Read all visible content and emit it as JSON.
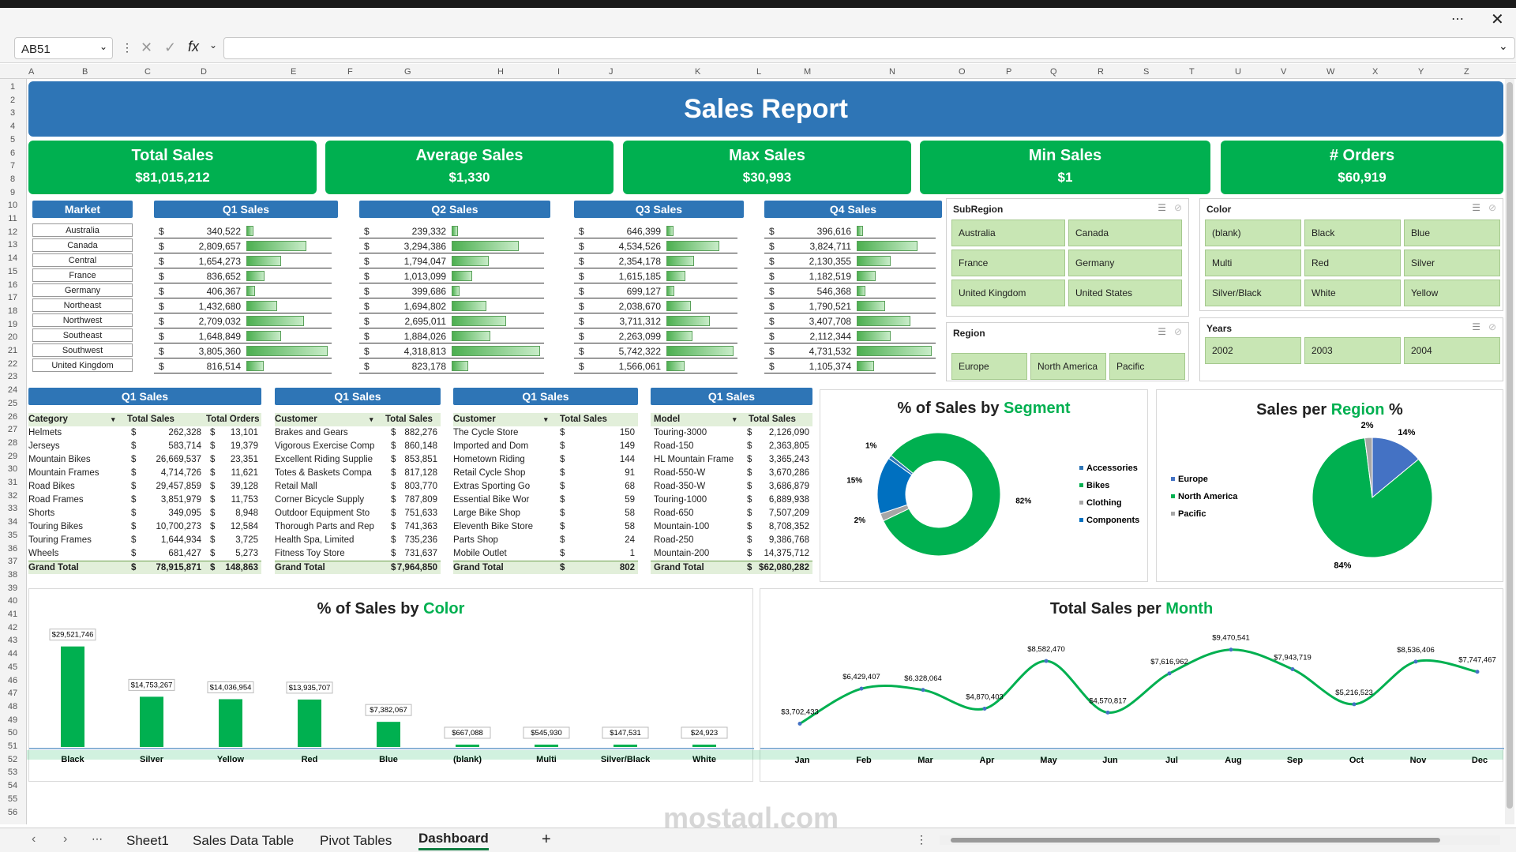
{
  "namebox": "AB51",
  "formula_icons": [
    "cancel-icon",
    "enter-icon",
    "fx-icon"
  ],
  "columns": [
    "A",
    "B",
    "C",
    "D",
    "E",
    "F",
    "G",
    "H",
    "I",
    "J",
    "K",
    "L",
    "M",
    "N",
    "O",
    "P",
    "Q",
    "R",
    "S",
    "T",
    "U",
    "V",
    "W",
    "X",
    "Y",
    "Z"
  ],
  "rows": [
    "1",
    "2",
    "3",
    "4",
    "5",
    "6",
    "7",
    "8",
    "9",
    "10",
    "11",
    "12",
    "13",
    "14",
    "15",
    "16",
    "17",
    "18",
    "19",
    "20",
    "21",
    "22",
    "23",
    "24",
    "25",
    "26",
    "27",
    "28",
    "29",
    "30",
    "31",
    "32",
    "33",
    "34",
    "35",
    "36",
    "37",
    "38",
    "39",
    "40",
    "41",
    "42",
    "43",
    "44",
    "45",
    "46",
    "47",
    "48",
    "49",
    "50",
    "51",
    "52",
    "53",
    "54",
    "55",
    "56"
  ],
  "title": "Sales Report",
  "kpis": [
    {
      "label": "Total Sales",
      "value": "$81,015,212"
    },
    {
      "label": "Average Sales",
      "value": "$1,330"
    },
    {
      "label": "Max  Sales",
      "value": "$30,993"
    },
    {
      "label": "Min  Sales",
      "value": "$1"
    },
    {
      "label": "# Orders",
      "value": "$60,919"
    }
  ],
  "market_header": "Market",
  "markets": [
    "Australia",
    "Canada",
    "Central",
    "France",
    "Germany",
    "Northeast",
    "Northwest",
    "Southeast",
    "Southwest",
    "United Kingdom"
  ],
  "quarters": [
    {
      "title": "Q1 Sales",
      "values": [
        "340,522",
        "2,809,657",
        "1,654,273",
        "836,652",
        "406,367",
        "1,432,680",
        "2,709,032",
        "1,648,849",
        "3,805,360",
        "816,514"
      ],
      "fill": [
        0.09,
        0.74,
        0.43,
        0.22,
        0.11,
        0.38,
        0.71,
        0.43,
        1.0,
        0.21
      ]
    },
    {
      "title": "Q2 Sales",
      "values": [
        "239,332",
        "3,294,386",
        "1,794,047",
        "1,013,099",
        "399,686",
        "1,694,802",
        "2,695,011",
        "1,884,026",
        "4,318,813",
        "823,178"
      ],
      "fill": [
        0.06,
        0.76,
        0.42,
        0.23,
        0.09,
        0.39,
        0.62,
        0.44,
        1.0,
        0.19
      ]
    },
    {
      "title": "Q3 Sales",
      "values": [
        "646,399",
        "4,534,526",
        "2,354,178",
        "1,615,185",
        "699,127",
        "2,038,670",
        "3,711,312",
        "2,263,099",
        "5,742,322",
        "1,566,061"
      ],
      "fill": [
        0.11,
        0.79,
        0.41,
        0.28,
        0.12,
        0.36,
        0.65,
        0.39,
        1.0,
        0.27
      ]
    },
    {
      "title": "Q4 Sales",
      "values": [
        "396,616",
        "3,824,711",
        "2,130,355",
        "1,182,519",
        "546,368",
        "1,790,521",
        "3,407,708",
        "2,112,344",
        "4,731,532",
        "1,105,374"
      ],
      "fill": [
        0.08,
        0.81,
        0.45,
        0.25,
        0.12,
        0.38,
        0.72,
        0.45,
        1.0,
        0.23
      ]
    }
  ],
  "currency": "$",
  "slicers": {
    "subregion": {
      "title": "SubRegion",
      "items": [
        "Australia",
        "Canada",
        "France",
        "Germany",
        "United Kingdom",
        "United States"
      ]
    },
    "color": {
      "title": "Color",
      "items": [
        "(blank)",
        "Black",
        "Blue",
        "Multi",
        "Red",
        "Silver",
        "Silver/Black",
        "White",
        "Yellow"
      ]
    },
    "region": {
      "title": "Region",
      "items": [
        "Europe",
        "North America",
        "Pacific"
      ]
    },
    "years": {
      "title": "Years",
      "items": [
        "2002",
        "2003",
        "2004"
      ]
    }
  },
  "pivot_category": {
    "title": "Q1 Sales",
    "headers": [
      "Category",
      "Total Sales",
      "Total Orders"
    ],
    "rows": [
      [
        "Helmets",
        "262,328",
        "13,101"
      ],
      [
        "Jerseys",
        "583,714",
        "19,379"
      ],
      [
        "Mountain Bikes",
        "26,669,537",
        "23,351"
      ],
      [
        "Mountain Frames",
        "4,714,726",
        "11,621"
      ],
      [
        "Road Bikes",
        "29,457,859",
        "39,128"
      ],
      [
        "Road Frames",
        "3,851,979",
        "11,753"
      ],
      [
        "Shorts",
        "349,095",
        "8,948"
      ],
      [
        "Touring Bikes",
        "10,700,273",
        "12,584"
      ],
      [
        "Touring Frames",
        "1,644,934",
        "3,725"
      ],
      [
        "Wheels",
        "681,427",
        "5,273"
      ]
    ],
    "total": [
      "Grand Total",
      "78,915,871",
      "148,863"
    ]
  },
  "pivot_customer": {
    "title": "Q1 Sales",
    "headers": [
      "Customer",
      "Total Sales"
    ],
    "rows": [
      [
        "Brakes and Gears",
        "882,276"
      ],
      [
        "Vigorous Exercise Comp",
        "860,148"
      ],
      [
        "Excellent Riding Supplie",
        "853,851"
      ],
      [
        "Totes & Baskets Compa",
        "817,128"
      ],
      [
        "Retail Mall",
        "803,770"
      ],
      [
        "Corner Bicycle Supply",
        "787,809"
      ],
      [
        "Outdoor Equipment Sto",
        "751,633"
      ],
      [
        "Thorough Parts and Rep",
        "741,363"
      ],
      [
        "Health Spa, Limited",
        "735,236"
      ],
      [
        "Fitness Toy Store",
        "731,637"
      ]
    ],
    "total": [
      "Grand Total",
      "7,964,850"
    ]
  },
  "pivot_orders": {
    "title": "Q1 Sales",
    "headers": [
      "Customer",
      "Total Sales"
    ],
    "rows": [
      [
        "The Cycle Store",
        "150"
      ],
      [
        "Imported and Dom",
        "149"
      ],
      [
        "Hometown Riding",
        "144"
      ],
      [
        "Retail Cycle Shop",
        "91"
      ],
      [
        "Extras Sporting Go",
        "68"
      ],
      [
        "Essential Bike Wor",
        "59"
      ],
      [
        "Large Bike Shop",
        "58"
      ],
      [
        "Eleventh Bike Store",
        "58"
      ],
      [
        "Parts Shop",
        "24"
      ],
      [
        "Mobile Outlet",
        "1"
      ]
    ],
    "total": [
      "Grand Total",
      "802"
    ]
  },
  "pivot_model": {
    "title": "Q1 Sales",
    "headers": [
      "Model",
      "Total Sales"
    ],
    "rows": [
      [
        "Touring-3000",
        "2,126,090"
      ],
      [
        "Road-150",
        "2,363,805"
      ],
      [
        "HL Mountain Frame",
        "3,365,243"
      ],
      [
        "Road-550-W",
        "3,670,286"
      ],
      [
        "Road-350-W",
        "3,686,879"
      ],
      [
        "Touring-1000",
        "6,889,938"
      ],
      [
        "Road-650",
        "7,507,209"
      ],
      [
        "Mountain-100",
        "8,708,352"
      ],
      [
        "Road-250",
        "9,386,768"
      ],
      [
        "Mountain-200",
        "14,375,712"
      ]
    ],
    "total": [
      "Grand Total",
      "$62,080,282"
    ]
  },
  "segment_chart": {
    "title_a": "% of  Sales by ",
    "title_b": "Segment"
  },
  "region_chart": {
    "title_a": "Sales per ",
    "title_b": "Region",
    "title_c": " %"
  },
  "color_chart": {
    "title_a": "% of Sales by ",
    "title_b": "Color"
  },
  "month_chart": {
    "title_a": "Total Sales per ",
    "title_b": "Month"
  },
  "chart_data": [
    {
      "type": "pie",
      "variant": "donut",
      "series": [
        {
          "values": [
            {
              "label": "Accessories",
              "value": 1,
              "text": "1%",
              "color": "#2e75b6"
            },
            {
              "label": "Bikes",
              "value": 82,
              "text": "82%",
              "color": "#00b050"
            },
            {
              "label": "Clothing",
              "value": 2,
              "text": "2%",
              "color": "#a6a6a6"
            },
            {
              "label": "Components",
              "value": 15,
              "text": "15%",
              "color": "#0070c0"
            }
          ]
        }
      ],
      "legend": [
        "Accessories",
        "Bikes",
        "Clothing",
        "Components"
      ],
      "legend_colors": [
        "#2e75b6",
        "#00b050",
        "#a6a6a6",
        "#0070c0"
      ]
    },
    {
      "type": "pie",
      "series": [
        {
          "values": [
            {
              "label": "Europe",
              "value": 14,
              "text": "14%",
              "color": "#4472c4"
            },
            {
              "label": "North America",
              "value": 84,
              "text": "84%",
              "color": "#00b050"
            },
            {
              "label": "Pacific",
              "value": 2,
              "text": "2%",
              "color": "#a6a6a6"
            }
          ]
        }
      ],
      "legend": [
        "Europe",
        "North America",
        "Pacific"
      ],
      "legend_colors": [
        "#4472c4",
        "#00b050",
        "#a6a6a6"
      ]
    },
    {
      "type": "bar",
      "categories": [
        "Black",
        "Silver",
        "Yellow",
        "Red",
        "Blue",
        "(blank)",
        "Multi",
        "Silver/Black",
        "White"
      ],
      "values": [
        29521746,
        14753267,
        14036954,
        13935707,
        7382067,
        667088,
        545930,
        147531,
        24923
      ],
      "labels": [
        "$29,521,746",
        "$14,753,267",
        "$14,036,954",
        "$13,935,707",
        "$7,382,067",
        "$667,088",
        "$545,930",
        "$147,531",
        "$24,923"
      ],
      "ylim": [
        0,
        32000000
      ],
      "color": "#00b050"
    },
    {
      "type": "line",
      "categories": [
        "Jan",
        "Feb",
        "Mar",
        "Apr",
        "May",
        "Jun",
        "Jul",
        "Aug",
        "Sep",
        "Oct",
        "Nov",
        "Dec"
      ],
      "values": [
        3702433,
        6429407,
        6328064,
        4870403,
        8582470,
        4570817,
        7616962,
        9470541,
        7943719,
        5216523,
        8536406,
        7747467
      ],
      "labels": [
        "$3,702,433",
        "$6,429,407",
        "$6,328,064",
        "$4,870,403",
        "$8,582,470",
        "$4,570,817",
        "$7,616,962",
        "$9,470,541",
        "$7,943,719",
        "$5,216,523",
        "$8,536,406",
        "$7,747,467"
      ],
      "ylim": [
        2500000,
        10500000
      ],
      "color": "#00b050"
    }
  ],
  "sheet_tabs": [
    "Sheet1",
    "Sales Data Table",
    "Pivot Tables",
    "Dashboard"
  ],
  "active_tab": "Dashboard",
  "watermark": "mostaql.com"
}
